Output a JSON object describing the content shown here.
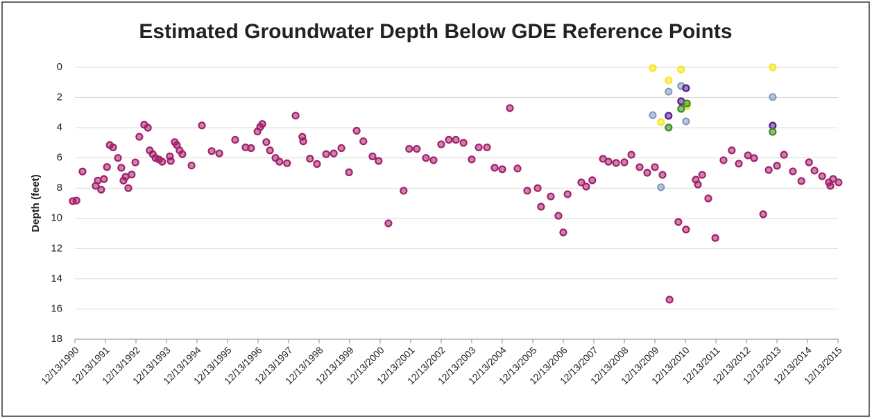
{
  "chart_data": {
    "type": "scatter",
    "title": "Estimated Groundwater Depth Below GDE Reference Points",
    "y_label": "Depth (feet)",
    "ylim": [
      0,
      18
    ],
    "yticks": [
      0,
      2,
      4,
      6,
      8,
      10,
      12,
      14,
      16,
      18
    ],
    "invert_y": true,
    "grid": true,
    "xlim": [
      1990.95,
      2015.95
    ],
    "xticks": [
      {
        "value": 1990.95,
        "label": "12/13/1990"
      },
      {
        "value": 1991.95,
        "label": "12/13/1991"
      },
      {
        "value": 1992.95,
        "label": "12/13/1992"
      },
      {
        "value": 1993.95,
        "label": "12/13/1993"
      },
      {
        "value": 1994.95,
        "label": "12/13/1994"
      },
      {
        "value": 1995.95,
        "label": "12/13/1995"
      },
      {
        "value": 1996.95,
        "label": "12/13/1996"
      },
      {
        "value": 1997.95,
        "label": "12/13/1997"
      },
      {
        "value": 1998.95,
        "label": "12/13/1998"
      },
      {
        "value": 1999.95,
        "label": "12/13/1999"
      },
      {
        "value": 2000.95,
        "label": "12/13/2000"
      },
      {
        "value": 2001.95,
        "label": "12/13/2001"
      },
      {
        "value": 2002.95,
        "label": "12/13/2002"
      },
      {
        "value": 2003.95,
        "label": "12/13/2003"
      },
      {
        "value": 2004.95,
        "label": "12/13/2004"
      },
      {
        "value": 2005.95,
        "label": "12/13/2005"
      },
      {
        "value": 2006.95,
        "label": "12/13/2006"
      },
      {
        "value": 2007.95,
        "label": "12/13/2007"
      },
      {
        "value": 2008.95,
        "label": "12/13/2008"
      },
      {
        "value": 2009.95,
        "label": "12/13/2009"
      },
      {
        "value": 2010.95,
        "label": "12/13/2010"
      },
      {
        "value": 2011.95,
        "label": "12/13/2011"
      },
      {
        "value": 2012.95,
        "label": "12/13/2012"
      },
      {
        "value": 2013.95,
        "label": "12/13/2013"
      },
      {
        "value": 2014.95,
        "label": "12/13/2014"
      },
      {
        "value": 2015.95,
        "label": "12/13/2015"
      }
    ],
    "series": [
      {
        "color": "#a3206a",
        "x": [
          1990.88,
          1991.0,
          1991.2,
          1991.63,
          1991.7,
          1991.81,
          1991.9,
          1992.0,
          1992.09,
          1992.2,
          1992.36,
          1992.47,
          1992.54,
          1992.61,
          1992.7,
          1992.81,
          1992.93,
          1993.06,
          1993.22,
          1993.34,
          1993.4,
          1993.5,
          1993.59,
          1993.7,
          1993.81,
          1994.06,
          1994.09,
          1994.22,
          1994.29,
          1994.38,
          1994.47,
          1994.77,
          1995.11,
          1995.43,
          1995.68,
          1996.2,
          1996.54,
          1996.72,
          1996.93,
          1997.02,
          1997.09,
          1997.22,
          1997.34,
          1997.52,
          1997.65,
          1997.9,
          1998.18,
          1998.4,
          1998.43,
          1998.65,
          1998.88,
          1999.18,
          1999.43,
          1999.68,
          1999.93,
          2000.18,
          2000.4,
          2000.7,
          2000.9,
          2001.22,
          2001.72,
          2001.9,
          2002.15,
          2002.45,
          2002.7,
          2002.95,
          2003.2,
          2003.43,
          2003.68,
          2003.95,
          2004.18,
          2004.45,
          2004.7,
          2004.95,
          2005.2,
          2005.45,
          2005.77,
          2006.11,
          2006.22,
          2006.54,
          2006.79,
          2006.95,
          2007.09,
          2007.54,
          2007.7,
          2007.9,
          2008.25,
          2008.43,
          2008.68,
          2008.95,
          2009.18,
          2009.45,
          2009.7,
          2009.95,
          2010.2,
          2010.43,
          2010.72,
          2010.97,
          2011.29,
          2011.36,
          2011.5,
          2011.7,
          2011.93,
          2012.2,
          2012.47,
          2012.7,
          2013.0,
          2013.2,
          2013.5,
          2013.68,
          2013.95,
          2014.18,
          2014.47,
          2014.75,
          2015.0,
          2015.18,
          2015.43,
          2015.65,
          2015.7,
          2015.79,
          2015.97
        ],
        "values": [
          8.86,
          8.82,
          6.9,
          7.85,
          7.5,
          8.1,
          7.4,
          6.6,
          5.15,
          5.3,
          6.0,
          6.65,
          7.5,
          7.25,
          8.0,
          7.1,
          6.3,
          4.6,
          3.8,
          4.0,
          5.5,
          5.75,
          6.0,
          6.1,
          6.25,
          5.9,
          6.2,
          4.95,
          5.15,
          5.5,
          5.75,
          6.5,
          3.85,
          5.55,
          5.7,
          4.8,
          5.3,
          5.35,
          4.25,
          3.95,
          3.75,
          4.95,
          5.5,
          6.0,
          6.25,
          6.35,
          3.2,
          4.6,
          4.9,
          6.05,
          6.4,
          5.75,
          5.7,
          5.35,
          6.95,
          4.2,
          4.9,
          5.9,
          6.2,
          10.33,
          8.17,
          5.4,
          5.4,
          6.0,
          6.15,
          5.1,
          4.8,
          4.8,
          5.0,
          6.1,
          5.3,
          5.3,
          6.65,
          6.75,
          2.7,
          6.7,
          8.17,
          8.0,
          9.23,
          8.55,
          9.83,
          10.93,
          8.4,
          7.62,
          7.9,
          7.48,
          6.06,
          6.25,
          6.33,
          6.29,
          5.79,
          6.61,
          6.98,
          6.61,
          7.12,
          15.38,
          10.24,
          10.74,
          7.44,
          7.76,
          7.12,
          8.68,
          11.3,
          6.15,
          5.5,
          6.38,
          5.83,
          6.01,
          9.73,
          6.8,
          6.52,
          5.79,
          6.89,
          7.53,
          6.29,
          6.84,
          7.21,
          7.62,
          7.85,
          7.39,
          7.62
        ]
      },
      {
        "color": "#f5e620",
        "x": [
          2009.88,
          2010.4,
          2010.15,
          2010.81,
          2011.0,
          2013.81
        ],
        "values": [
          0.05,
          0.87,
          3.63,
          0.14,
          2.57,
          0
        ]
      },
      {
        "color": "#7f9cc0",
        "x": [
          2009.88,
          2010.4,
          2010.15,
          2010.81,
          2010.97,
          2013.81
        ],
        "values": [
          3.17,
          1.61,
          7.94,
          1.24,
          3.58,
          1.97
        ]
      },
      {
        "color": "#5a1a8a",
        "x": [
          2010.4,
          2010.81,
          2010.97,
          2013.81
        ],
        "values": [
          3.21,
          2.25,
          1.38,
          3.86
        ]
      },
      {
        "color": "#3c8a1e",
        "x": [
          2010.4,
          2010.81,
          2011.0,
          2013.81
        ],
        "values": [
          3.99,
          2.75,
          2.39,
          4.27
        ]
      }
    ]
  }
}
